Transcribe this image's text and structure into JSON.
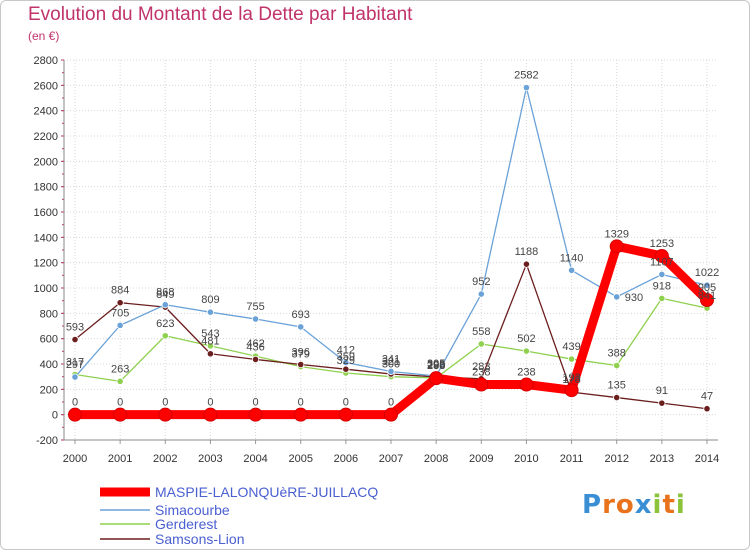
{
  "title": "Evolution du Montant de la Dette par Habitant",
  "subtitle": "(en €)",
  "logo": "Proxiti",
  "chart_data": {
    "type": "line",
    "title": "Evolution du Montant de la Dette par Habitant",
    "ylabel": "(en €)",
    "xlabel": "",
    "ylim": [
      -200,
      2800
    ],
    "y_ticks": [
      -200,
      0,
      200,
      400,
      600,
      800,
      1000,
      1200,
      1400,
      1600,
      1800,
      2000,
      2200,
      2400,
      2600,
      2800
    ],
    "categories": [
      "2000",
      "2001",
      "2002",
      "2003",
      "2004",
      "2005",
      "2006",
      "2007",
      "2008",
      "2009",
      "2010",
      "2011",
      "2012",
      "2013",
      "2014"
    ],
    "grid": true,
    "legend": "bottom-left",
    "series": [
      {
        "name": "Simacourbe",
        "color": "#6aa2d8",
        "values": [
          297,
          705,
          868,
          809,
          755,
          693,
          412,
          341,
          305,
          952,
          2582,
          1140,
          930,
          1107,
          1022
        ]
      },
      {
        "name": "Gerderest",
        "color": "#8fd14f",
        "values": [
          317,
          263,
          623,
          543,
          462,
          379,
          329,
          300,
          290,
          558,
          502,
          439,
          388,
          918,
          841
        ]
      },
      {
        "name": "Samsons-Lion",
        "color": "#6b1e1e",
        "values": [
          593,
          884,
          849,
          481,
          436,
          396,
          359,
          321,
          298,
          283,
          1188,
          178,
          135,
          91,
          47
        ]
      },
      {
        "name": "MASPIE-LALONQUèRE-JUILLACQ",
        "color": "#ff0000",
        "values": [
          0,
          0,
          0,
          0,
          0,
          0,
          0,
          0,
          288,
          238,
          238,
          193,
          1329,
          1253,
          905
        ]
      }
    ],
    "labels": [
      {
        "series": "MASPIE-LALONQUèRE-JUILLACQ",
        "x": 0,
        "value": 0,
        "pos": "above"
      },
      {
        "series": "MASPIE-LALONQUèRE-JUILLACQ",
        "x": 1,
        "value": 0,
        "pos": "above"
      },
      {
        "series": "MASPIE-LALONQUèRE-JUILLACQ",
        "x": 2,
        "value": 0,
        "pos": "above"
      },
      {
        "series": "MASPIE-LALONQUèRE-JUILLACQ",
        "x": 3,
        "value": 0,
        "pos": "above"
      },
      {
        "series": "MASPIE-LALONQUèRE-JUILLACQ",
        "x": 4,
        "value": 0,
        "pos": "above"
      },
      {
        "series": "MASPIE-LALONQUèRE-JUILLACQ",
        "x": 5,
        "value": 0,
        "pos": "above"
      },
      {
        "series": "MASPIE-LALONQUèRE-JUILLACQ",
        "x": 6,
        "value": 0,
        "pos": "above"
      },
      {
        "series": "MASPIE-LALONQUèRE-JUILLACQ",
        "x": 7,
        "value": 0,
        "pos": "above"
      },
      {
        "series": "MASPIE-LALONQUèRE-JUILLACQ",
        "x": 8,
        "value": 288,
        "pos": "above"
      },
      {
        "series": "MASPIE-LALONQUèRE-JUILLACQ",
        "x": 9,
        "value": 238,
        "pos": "above"
      },
      {
        "series": "MASPIE-LALONQUèRE-JUILLACQ",
        "x": 10,
        "value": 238,
        "pos": "above"
      },
      {
        "series": "MASPIE-LALONQUèRE-JUILLACQ",
        "x": 11,
        "value": 193,
        "pos": "above"
      },
      {
        "series": "MASPIE-LALONQUèRE-JUILLACQ",
        "x": 12,
        "value": 1329,
        "pos": "above"
      },
      {
        "series": "MASPIE-LALONQUèRE-JUILLACQ",
        "x": 13,
        "value": 1253,
        "pos": "above"
      },
      {
        "series": "MASPIE-LALONQUèRE-JUILLACQ",
        "x": 14,
        "value": 905,
        "pos": "above"
      },
      {
        "series": "Simacourbe",
        "x": 0,
        "value": 297,
        "pos": "above"
      },
      {
        "series": "Simacourbe",
        "x": 1,
        "value": 705,
        "pos": "above"
      },
      {
        "series": "Simacourbe",
        "x": 2,
        "value": 868,
        "pos": "above"
      },
      {
        "series": "Simacourbe",
        "x": 3,
        "value": 809,
        "pos": "above"
      },
      {
        "series": "Simacourbe",
        "x": 4,
        "value": 755,
        "pos": "above"
      },
      {
        "series": "Simacourbe",
        "x": 5,
        "value": 693,
        "pos": "above"
      },
      {
        "series": "Simacourbe",
        "x": 6,
        "value": 412,
        "pos": "above"
      },
      {
        "series": "Simacourbe",
        "x": 7,
        "value": 341,
        "pos": "above"
      },
      {
        "series": "Simacourbe",
        "x": 8,
        "value": 305,
        "pos": "above"
      },
      {
        "series": "Simacourbe",
        "x": 9,
        "value": 952,
        "pos": "above"
      },
      {
        "series": "Simacourbe",
        "x": 10,
        "value": 2582,
        "pos": "above"
      },
      {
        "series": "Simacourbe",
        "x": 11,
        "value": 1140,
        "pos": "above"
      },
      {
        "series": "Simacourbe",
        "x": 12,
        "value": 930,
        "pos": "right"
      },
      {
        "series": "Simacourbe",
        "x": 13,
        "value": 1107,
        "pos": "above"
      },
      {
        "series": "Simacourbe",
        "x": 14,
        "value": 1022,
        "pos": "above"
      },
      {
        "series": "Gerderest",
        "x": 0,
        "value": 317,
        "pos": "above"
      },
      {
        "series": "Gerderest",
        "x": 1,
        "value": 263,
        "pos": "above"
      },
      {
        "series": "Gerderest",
        "x": 2,
        "value": 623,
        "pos": "above"
      },
      {
        "series": "Gerderest",
        "x": 3,
        "value": 543,
        "pos": "above"
      },
      {
        "series": "Gerderest",
        "x": 4,
        "value": 462,
        "pos": "above"
      },
      {
        "series": "Gerderest",
        "x": 5,
        "value": 379,
        "pos": "above"
      },
      {
        "series": "Gerderest",
        "x": 6,
        "value": 329,
        "pos": "above"
      },
      {
        "series": "Gerderest",
        "x": 7,
        "value": 300,
        "pos": "above"
      },
      {
        "series": "Gerderest",
        "x": 8,
        "value": 290,
        "pos": "above"
      },
      {
        "series": "Gerderest",
        "x": 9,
        "value": 558,
        "pos": "above"
      },
      {
        "series": "Gerderest",
        "x": 10,
        "value": 502,
        "pos": "above"
      },
      {
        "series": "Gerderest",
        "x": 11,
        "value": 439,
        "pos": "above"
      },
      {
        "series": "Gerderest",
        "x": 12,
        "value": 388,
        "pos": "above"
      },
      {
        "series": "Gerderest",
        "x": 13,
        "value": 918,
        "pos": "above"
      },
      {
        "series": "Gerderest",
        "x": 14,
        "value": 841,
        "pos": "above"
      },
      {
        "series": "Samsons-Lion",
        "x": 0,
        "value": 593,
        "pos": "above"
      },
      {
        "series": "Samsons-Lion",
        "x": 1,
        "value": 884,
        "pos": "above"
      },
      {
        "series": "Samsons-Lion",
        "x": 2,
        "value": 849,
        "pos": "above"
      },
      {
        "series": "Samsons-Lion",
        "x": 3,
        "value": 481,
        "pos": "above"
      },
      {
        "series": "Samsons-Lion",
        "x": 4,
        "value": 436,
        "pos": "above"
      },
      {
        "series": "Samsons-Lion",
        "x": 5,
        "value": 396,
        "pos": "above"
      },
      {
        "series": "Samsons-Lion",
        "x": 6,
        "value": 359,
        "pos": "above"
      },
      {
        "series": "Samsons-Lion",
        "x": 7,
        "value": 321,
        "pos": "above"
      },
      {
        "series": "Samsons-Lion",
        "x": 8,
        "value": 298,
        "pos": "above"
      },
      {
        "series": "Samsons-Lion",
        "x": 9,
        "value": 283,
        "pos": "above"
      },
      {
        "series": "Samsons-Lion",
        "x": 10,
        "value": 1188,
        "pos": "above"
      },
      {
        "series": "Samsons-Lion",
        "x": 11,
        "value": 178,
        "pos": "above"
      },
      {
        "series": "Samsons-Lion",
        "x": 12,
        "value": 135,
        "pos": "above"
      },
      {
        "series": "Samsons-Lion",
        "x": 13,
        "value": 91,
        "pos": "above"
      },
      {
        "series": "Samsons-Lion",
        "x": 14,
        "value": 47,
        "pos": "above"
      }
    ]
  }
}
